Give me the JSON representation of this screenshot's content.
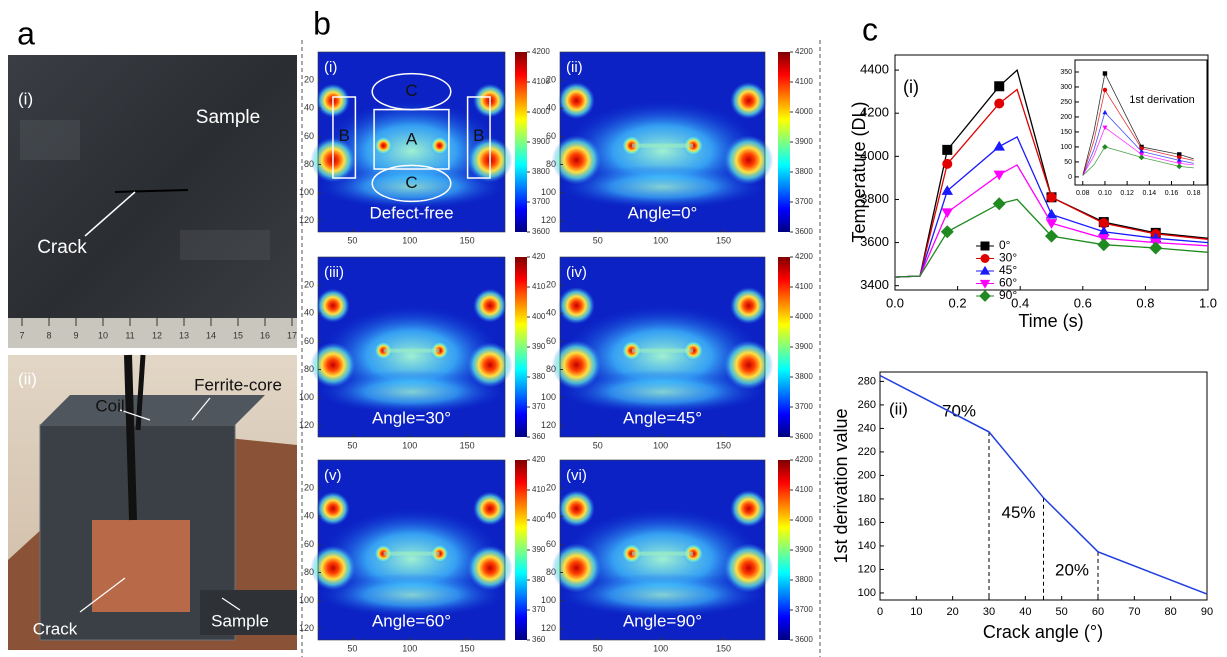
{
  "panel_a": {
    "label": "a",
    "photo_i": {
      "label": "(i)",
      "sample": "Sample",
      "crack": "Crack",
      "ruler_ticks": [
        7,
        8,
        9,
        10,
        11,
        12,
        13,
        14,
        15,
        16,
        17
      ]
    },
    "photo_ii": {
      "label": "(ii)",
      "coil": "Coil",
      "ferrite_core": "Ferrite-core",
      "crack": "Crack",
      "sample": "Sample"
    }
  },
  "panel_b": {
    "label": "b",
    "xlim": [
      20,
      183
    ],
    "ylim": [
      0,
      128
    ],
    "xticks": [
      50,
      100,
      150
    ],
    "yticks": [
      20,
      40,
      60,
      80,
      100,
      120
    ],
    "regions": [
      "A",
      "B",
      "B",
      "C",
      "C"
    ],
    "maps": [
      {
        "label": "(i)",
        "caption": "Defect-free",
        "clim": [
          3600,
          4200
        ],
        "colorbar_ticks": [
          3600,
          3700,
          3800,
          3900,
          4000,
          4100,
          4200
        ]
      },
      {
        "label": "(ii)",
        "caption": "Angle=0°",
        "clim": [
          3600,
          4200
        ],
        "colorbar_ticks": [
          3600,
          3700,
          3800,
          3900,
          4000,
          4100,
          4200
        ]
      },
      {
        "label": "(iii)",
        "caption": "Angle=30°",
        "clim": [
          360,
          420
        ],
        "colorbar_ticks": [
          360,
          370,
          380,
          390,
          400,
          410,
          420
        ]
      },
      {
        "label": "(iv)",
        "caption": "Angle=45°",
        "clim": [
          3600,
          4200
        ],
        "colorbar_ticks": [
          3600,
          3700,
          3800,
          3900,
          4000,
          4100,
          4200
        ]
      },
      {
        "label": "(v)",
        "caption": "Angle=60°",
        "clim": [
          360,
          420
        ],
        "colorbar_ticks": [
          360,
          370,
          380,
          390,
          400,
          410,
          420
        ]
      },
      {
        "label": "(vi)",
        "caption": "Angle=90°",
        "clim": [
          3600,
          4200
        ],
        "colorbar_ticks": [
          3600,
          3700,
          3800,
          3900,
          4000,
          4100,
          4200
        ]
      }
    ]
  },
  "panel_c_label": "c",
  "chart_data": [
    {
      "type": "line",
      "label": "(i)",
      "xlabel": "Time (s)",
      "ylabel": "Temperature (DL)",
      "x": [
        0,
        0.08,
        0.167,
        0.333,
        0.39,
        0.5,
        0.667,
        0.833,
        1.0
      ],
      "marker_x": [
        0.167,
        0.333,
        0.5,
        0.667,
        0.833
      ],
      "xlim": [
        0,
        1
      ],
      "ylim": [
        3380,
        4470
      ],
      "xticks": [
        {
          "value": 0,
          "label": "0.0"
        },
        0.2,
        0.4,
        0.6,
        0.8,
        {
          "value": 1,
          "label": "1.0"
        }
      ],
      "yticks": [
        3400,
        3600,
        3800,
        4000,
        4200,
        4400
      ],
      "legend": "lower-left",
      "series": [
        {
          "name": "0°",
          "color": "#000000",
          "marker": "square",
          "values": [
            3440,
            3445,
            4030,
            4325,
            4400,
            3810,
            3695,
            3645,
            3620
          ],
          "marker_values": [
            4030,
            4325,
            3810,
            3695,
            3645
          ],
          "inset_values": [
            5,
            150,
            345,
            100,
            75,
            60
          ],
          "inset_marker_values": [
            345,
            100,
            75
          ]
        },
        {
          "name": "30°",
          "color": "#e00000",
          "marker": "circle",
          "values": [
            3440,
            3445,
            3965,
            4245,
            4310,
            3810,
            3690,
            3640,
            3615
          ],
          "marker_values": [
            3965,
            4245,
            3810,
            3690,
            3640
          ],
          "inset_values": [
            5,
            120,
            290,
            95,
            65,
            55
          ],
          "inset_marker_values": [
            290,
            95,
            65
          ]
        },
        {
          "name": "45°",
          "color": "#1a1aff",
          "marker": "triangle-up",
          "values": [
            3440,
            3445,
            3840,
            4045,
            4090,
            3730,
            3650,
            3620,
            3600
          ],
          "marker_values": [
            3840,
            4045,
            3730,
            3650,
            3620
          ],
          "inset_values": [
            5,
            90,
            215,
            85,
            55,
            45
          ],
          "inset_marker_values": [
            215,
            85,
            55
          ]
        },
        {
          "name": "60°",
          "color": "#ff00ff",
          "marker": "triangle-down",
          "values": [
            3440,
            3445,
            3740,
            3915,
            3960,
            3690,
            3620,
            3600,
            3585
          ],
          "marker_values": [
            3740,
            3915,
            3690,
            3620,
            3600
          ],
          "inset_values": [
            5,
            70,
            165,
            75,
            45,
            40
          ],
          "inset_marker_values": [
            165,
            75,
            45
          ]
        },
        {
          "name": "90°",
          "color": "#1f8a1f",
          "marker": "diamond",
          "values": [
            3440,
            3445,
            3650,
            3780,
            3800,
            3630,
            3590,
            3575,
            3555
          ],
          "marker_values": [
            3650,
            3780,
            3630,
            3590,
            3575
          ],
          "inset_values": [
            5,
            40,
            100,
            65,
            35,
            30
          ],
          "inset_marker_values": [
            100,
            65,
            35
          ]
        }
      ],
      "inset": {
        "title": "1st derivation",
        "x": [
          0.08,
          0.09,
          0.1,
          0.133,
          0.167,
          0.18
        ],
        "marker_x": [
          0.1,
          0.133,
          0.167
        ],
        "xlim": [
          0.073,
          0.192
        ],
        "ylim": [
          -27,
          390
        ],
        "xticks": [
          0.08,
          {
            "value": 0.1,
            "label": "0.10"
          },
          0.12,
          0.14,
          0.16,
          0.18
        ],
        "yticks": [
          0,
          50,
          100,
          150,
          200,
          250,
          300,
          350
        ]
      }
    },
    {
      "type": "line",
      "label": "(ii)",
      "xlabel": "Crack angle (°)",
      "ylabel": "1st derivation value",
      "x": [
        0,
        30,
        45,
        60,
        90
      ],
      "values": [
        285,
        237,
        181,
        135,
        99
      ],
      "color": "#1f3fe0",
      "xlim": [
        0,
        90
      ],
      "ylim": [
        94,
        288
      ],
      "xticks": [
        0,
        10,
        20,
        30,
        40,
        50,
        60,
        70,
        80,
        90
      ],
      "yticks": [
        100,
        120,
        140,
        160,
        180,
        200,
        220,
        240,
        260,
        280
      ],
      "annotations": [
        {
          "text": "70%",
          "x": 30
        },
        {
          "text": "45%",
          "x": 45
        },
        {
          "text": "20%",
          "x": 60
        }
      ]
    }
  ]
}
